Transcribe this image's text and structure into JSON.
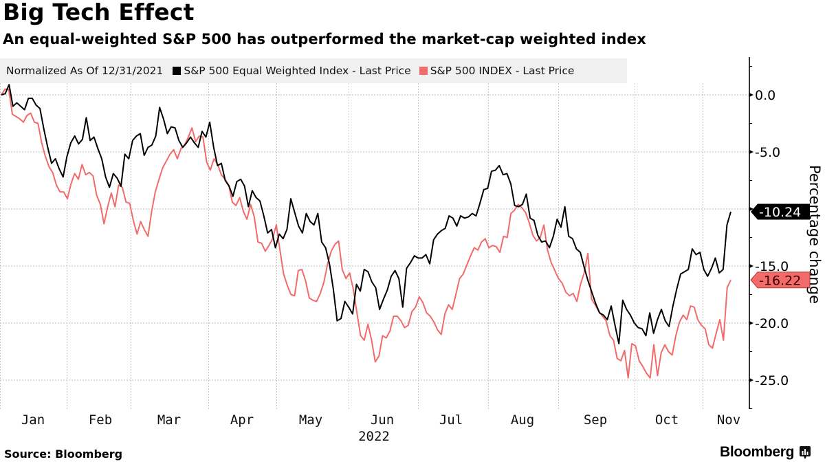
{
  "header": {
    "title": "Big Tech Effect",
    "subtitle": "An equal-weighted S&P 500 has outperformed the market-cap weighted index"
  },
  "legend": {
    "note": "Normalized As Of 12/31/2021",
    "items": [
      {
        "label": "S&P 500 Equal Weighted Index - Last Price",
        "color": "#000000"
      },
      {
        "label": "S&P 500 INDEX - Last Price",
        "color": "#f26b6b"
      }
    ]
  },
  "footer": {
    "source": "Source: Bloomberg",
    "brand": "Bloomberg",
    "brand_icon": "bloomberg-chart-icon"
  },
  "chart_data": {
    "type": "line",
    "title": "Big Tech Effect",
    "subtitle": "An equal-weighted S&P 500 has outperformed the market-cap weighted index",
    "xlabel": "2022",
    "ylabel": "Percentage change",
    "x_tick_labels": [
      "Jan",
      "Feb",
      "Mar",
      "Apr",
      "May",
      "Jun",
      "Jul",
      "Aug",
      "Sep",
      "Oct",
      "Nov"
    ],
    "x_year_label": "2022",
    "x_range": [
      "2021-12-31",
      "2022-11-11"
    ],
    "y_ticks": [
      0.0,
      -5.0,
      -10.0,
      -15.0,
      -20.0,
      -25.0
    ],
    "y_tick_labels": [
      "0.0",
      "-5.0",
      "-10.0",
      "-15.0",
      "-20.0",
      "-25.0"
    ],
    "ylim": [
      -27.5,
      3.3
    ],
    "grid": true,
    "legend_position": "top-left",
    "y_axis_side": "right",
    "series": [
      {
        "name": "S&P 500 Equal Weighted Index - Last Price",
        "color": "#000000",
        "last_value_label": "-10.24",
        "values": [
          0.0,
          0.1,
          0.9,
          -1.0,
          -0.7,
          -1.0,
          -1.3,
          -0.3,
          -0.3,
          -0.9,
          -1.2,
          -3.0,
          -4.6,
          -6.0,
          -5.6,
          -6.5,
          -7.2,
          -5.4,
          -4.2,
          -3.6,
          -4.3,
          -3.9,
          -2.0,
          -4.0,
          -3.7,
          -4.7,
          -5.6,
          -7.2,
          -8.1,
          -6.9,
          -7.3,
          -8.0,
          -5.2,
          -5.6,
          -4.0,
          -3.6,
          -3.4,
          -5.3,
          -4.6,
          -4.4,
          -3.6,
          -1.1,
          -2.1,
          -3.4,
          -2.8,
          -2.9,
          -4.0,
          -4.6,
          -4.2,
          -3.7,
          -4.2,
          -4.6,
          -3.2,
          -3.7,
          -2.4,
          -4.6,
          -6.2,
          -6.0,
          -7.5,
          -8.0,
          -8.9,
          -7.6,
          -7.4,
          -8.0,
          -9.8,
          -8.4,
          -9.0,
          -9.3,
          -10.6,
          -12.1,
          -11.8,
          -13.4,
          -12.2,
          -12.6,
          -11.8,
          -9.1,
          -10.3,
          -11.5,
          -12.1,
          -10.4,
          -11.1,
          -11.4,
          -10.4,
          -12.9,
          -13.4,
          -14.8,
          -17.0,
          -19.8,
          -19.6,
          -18.1,
          -18.6,
          -19.2,
          -16.6,
          -17.2,
          -15.3,
          -15.5,
          -16.4,
          -16.9,
          -18.8,
          -17.9,
          -17.1,
          -15.9,
          -15.4,
          -16.1,
          -18.6,
          -15.2,
          -14.7,
          -14.1,
          -14.3,
          -14.3,
          -14.0,
          -14.8,
          -12.7,
          -12.2,
          -11.9,
          -11.7,
          -10.6,
          -10.8,
          -11.5,
          -10.6,
          -10.8,
          -10.7,
          -10.4,
          -10.6,
          -9.5,
          -8.3,
          -8.2,
          -6.7,
          -6.6,
          -6.2,
          -7.0,
          -6.9,
          -7.8,
          -9.7,
          -9.8,
          -9.6,
          -8.7,
          -10.8,
          -11.0,
          -12.3,
          -12.9,
          -12.8,
          -13.4,
          -12.4,
          -10.9,
          -11.6,
          -9.8,
          -12.4,
          -12.6,
          -13.5,
          -13.8,
          -15.1,
          -16.3,
          -17.3,
          -18.3,
          -19.1,
          -19.3,
          -19.7,
          -18.5,
          -20.2,
          -21.8,
          -18.0,
          -18.8,
          -19.3,
          -20.0,
          -20.4,
          -20.5,
          -21.1,
          -19.1,
          -20.9,
          -19.7,
          -18.8,
          -19.8,
          -20.3,
          -18.5,
          -17.0,
          -15.7,
          -15.5,
          -15.3,
          -13.5,
          -14.0,
          -13.8,
          -15.3,
          -15.9,
          -15.2,
          -14.3,
          -15.6,
          -15.3,
          -11.4,
          -10.24
        ]
      },
      {
        "name": "S&P 500 INDEX - Last Price",
        "color": "#f26b6b",
        "last_value_label": "-16.22",
        "values": [
          0.0,
          0.5,
          0.5,
          -1.7,
          -1.9,
          -2.1,
          -2.4,
          -1.8,
          -1.6,
          -2.4,
          -2.5,
          -4.2,
          -5.4,
          -6.3,
          -6.8,
          -7.9,
          -8.5,
          -8.5,
          -9.1,
          -7.8,
          -6.9,
          -7.4,
          -6.1,
          -7.0,
          -6.8,
          -7.1,
          -8.8,
          -9.6,
          -11.3,
          -9.8,
          -8.6,
          -9.8,
          -7.9,
          -8.1,
          -9.4,
          -9.5,
          -11.0,
          -12.2,
          -11.1,
          -11.8,
          -12.4,
          -10.2,
          -8.5,
          -7.4,
          -6.4,
          -5.8,
          -5.2,
          -4.8,
          -5.6,
          -4.7,
          -4.4,
          -3.7,
          -2.9,
          -4.1,
          -3.6,
          -3.7,
          -5.9,
          -6.6,
          -5.6,
          -6.1,
          -7.0,
          -7.4,
          -7.9,
          -9.4,
          -9.7,
          -9.0,
          -10.2,
          -10.9,
          -9.6,
          -10.7,
          -12.9,
          -13.0,
          -13.7,
          -13.2,
          -12.6,
          -11.4,
          -13.6,
          -15.7,
          -16.7,
          -17.5,
          -17.6,
          -15.4,
          -15.3,
          -16.3,
          -17.8,
          -18.0,
          -18.1,
          -17.4,
          -16.4,
          -14.8,
          -13.7,
          -13.1,
          -12.8,
          -15.3,
          -16.1,
          -15.6,
          -17.0,
          -19.1,
          -21.1,
          -21.5,
          -20.1,
          -21.5,
          -23.4,
          -22.9,
          -21.1,
          -21.3,
          -20.7,
          -19.4,
          -19.4,
          -19.8,
          -20.4,
          -20.2,
          -19.0,
          -18.6,
          -17.7,
          -18.2,
          -19.1,
          -19.4,
          -19.9,
          -20.6,
          -21.0,
          -19.2,
          -18.4,
          -18.8,
          -17.5,
          -16.1,
          -15.7,
          -14.9,
          -14.1,
          -13.4,
          -13.6,
          -12.9,
          -12.6,
          -13.4,
          -13.2,
          -13.3,
          -13.8,
          -12.4,
          -12.5,
          -10.4,
          -10.1,
          -9.6,
          -9.9,
          -10.3,
          -11.2,
          -12.3,
          -12.8,
          -12.5,
          -11.4,
          -13.6,
          -14.7,
          -15.4,
          -16.1,
          -16.5,
          -17.3,
          -17.6,
          -17.4,
          -18.1,
          -16.6,
          -15.6,
          -13.9,
          -17.9,
          -18.4,
          -19.0,
          -19.4,
          -19.8,
          -21.1,
          -21.5,
          -23.1,
          -23.3,
          -22.4,
          -24.8,
          -21.8,
          -22.0,
          -23.3,
          -23.8,
          -24.4,
          -24.8,
          -21.9,
          -24.6,
          -22.6,
          -21.9,
          -22.5,
          -22.8,
          -21.1,
          -19.9,
          -19.3,
          -19.7,
          -18.5,
          -18.6,
          -19.7,
          -20.2,
          -20.5,
          -21.9,
          -22.2,
          -20.9,
          -19.7,
          -21.5,
          -16.9,
          -16.22
        ]
      }
    ]
  }
}
